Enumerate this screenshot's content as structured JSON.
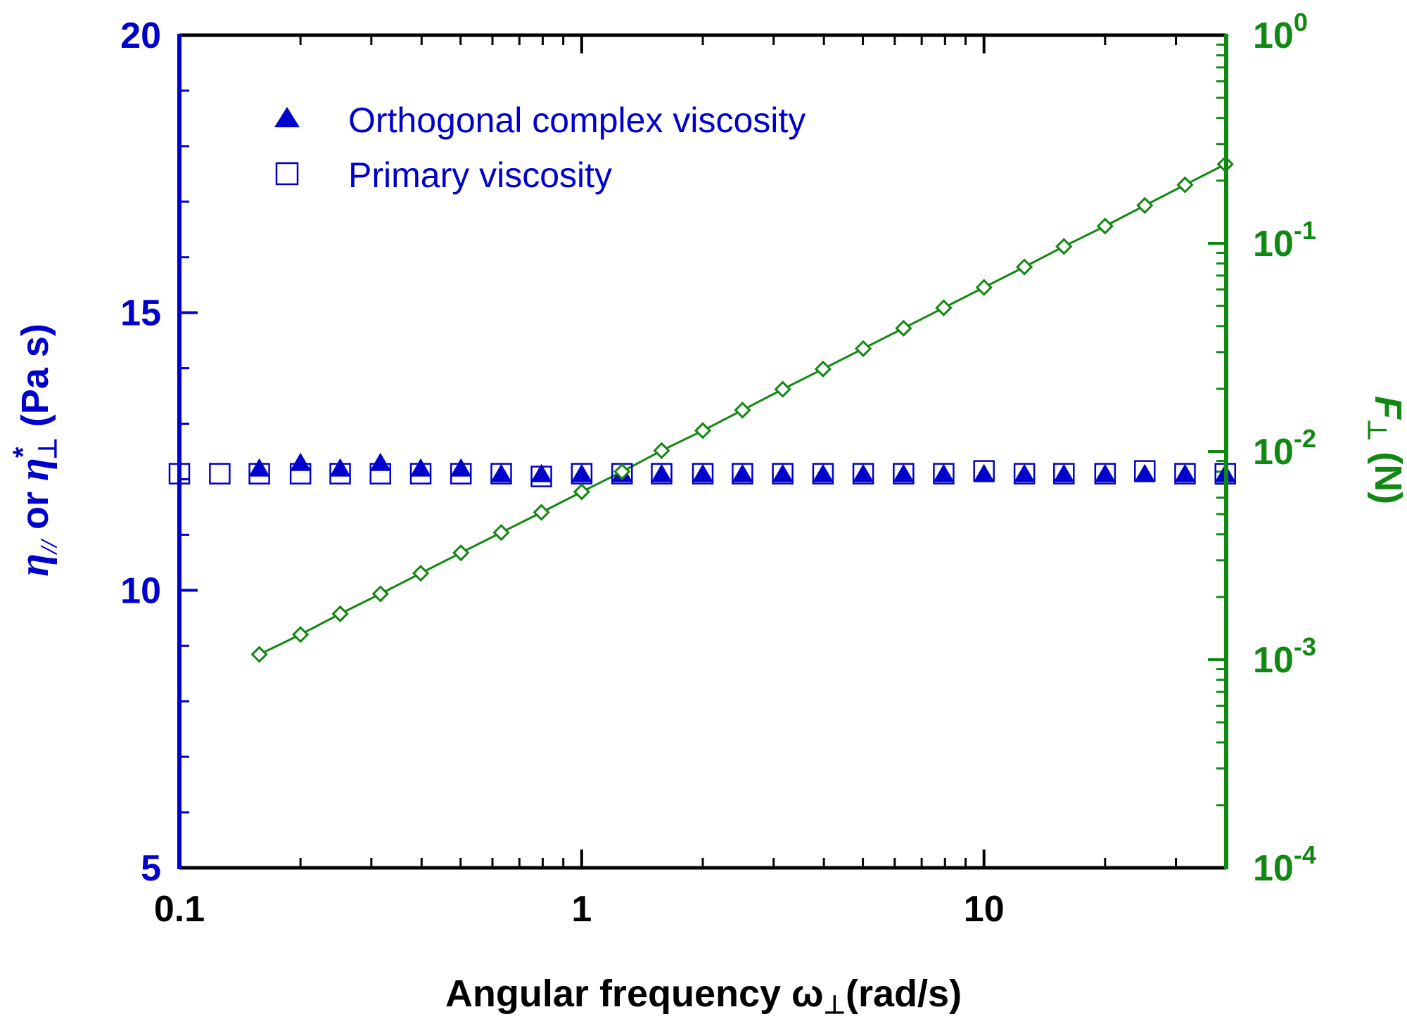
{
  "chart_data": {
    "type": "scatter",
    "title": "",
    "xlabel": "Angular frequency ω⊥(rad/s)",
    "xlabel_parts": {
      "main": "Angular frequency ω",
      "sub": "⊥",
      "unit": "(rad/s)"
    },
    "ylabel_left": "η// or η*⊥ (Pa s)",
    "ylabel_left_parts": {
      "eta1": "η",
      "sub1": "//",
      "or": " or ",
      "eta2": "η",
      "sup2": "*",
      "sub2": "⊥",
      "unit": " (Pa s)"
    },
    "ylabel_right": "F⊥ (N)",
    "ylabel_right_parts": {
      "f": "F",
      "sub": "⊥",
      "unit": " (N)"
    },
    "x_scale": "log",
    "xlim": [
      0.1,
      40
    ],
    "x_ticks": [
      0.1,
      1,
      10
    ],
    "x_tick_labels": [
      "0.1",
      "1",
      "10"
    ],
    "ylim_left": [
      5,
      20
    ],
    "y_left_ticks": [
      5,
      10,
      15,
      20
    ],
    "y_left_tick_labels": [
      "5",
      "10",
      "15",
      "20"
    ],
    "y_right_scale": "log",
    "ylim_right": [
      0.0001,
      1
    ],
    "y_right_ticks": [
      0.0001,
      0.001,
      0.01,
      0.1,
      1
    ],
    "y_right_tick_labels": [
      {
        "base": "10",
        "exp": "-4"
      },
      {
        "base": "10",
        "exp": "-3"
      },
      {
        "base": "10",
        "exp": "-2"
      },
      {
        "base": "10",
        "exp": "-1"
      },
      {
        "base": "10",
        "exp": "0"
      }
    ],
    "legend_position": "top-left",
    "colors": {
      "left_axis": "#0000cc",
      "right_axis": "#118811",
      "frame": "#000000"
    },
    "series": [
      {
        "name": "Orthogonal complex viscosity",
        "axis": "left",
        "marker": "filled-triangle",
        "color": "#0000cc",
        "x": [
          0.158,
          0.2,
          0.251,
          0.316,
          0.398,
          0.501,
          0.631,
          0.794,
          1.0,
          1.26,
          1.58,
          2.0,
          2.51,
          3.16,
          3.98,
          5.01,
          6.31,
          7.94,
          10.0,
          12.6,
          15.8,
          20.0,
          25.1,
          31.6,
          39.8
        ],
        "values": [
          12.2,
          12.3,
          12.2,
          12.3,
          12.2,
          12.2,
          12.1,
          12.1,
          12.1,
          12.1,
          12.1,
          12.1,
          12.1,
          12.1,
          12.1,
          12.1,
          12.1,
          12.1,
          12.1,
          12.1,
          12.1,
          12.1,
          12.1,
          12.1,
          12.1
        ]
      },
      {
        "name": "Primary viscosity",
        "axis": "left",
        "marker": "open-square",
        "color": "#0000cc",
        "x": [
          0.1,
          0.126,
          0.158,
          0.2,
          0.251,
          0.316,
          0.398,
          0.501,
          0.631,
          0.794,
          1.0,
          1.26,
          1.58,
          2.0,
          2.51,
          3.16,
          3.98,
          5.01,
          6.31,
          7.94,
          10.0,
          12.6,
          15.8,
          20.0,
          25.1,
          31.6,
          39.8
        ],
        "values": [
          12.1,
          12.1,
          12.1,
          12.1,
          12.1,
          12.1,
          12.1,
          12.1,
          12.1,
          12.05,
          12.1,
          12.1,
          12.1,
          12.1,
          12.1,
          12.1,
          12.1,
          12.1,
          12.1,
          12.1,
          12.15,
          12.1,
          12.1,
          12.1,
          12.15,
          12.1,
          12.1
        ]
      },
      {
        "axis": "right",
        "marker": "open-diamond-line",
        "color": "#118811",
        "x": [
          0.158,
          0.2,
          0.251,
          0.316,
          0.398,
          0.501,
          0.631,
          0.794,
          1.0,
          1.26,
          1.58,
          2.0,
          2.51,
          3.16,
          3.98,
          5.01,
          6.31,
          7.94,
          10.0,
          12.6,
          15.8,
          20.0,
          25.1,
          31.6,
          39.8
        ],
        "values": [
          0.00106,
          0.00132,
          0.00166,
          0.00207,
          0.0026,
          0.00326,
          0.00408,
          0.0051,
          0.0064,
          0.008,
          0.0101,
          0.0126,
          0.0158,
          0.0199,
          0.0249,
          0.0312,
          0.0391,
          0.049,
          0.0614,
          0.077,
          0.0966,
          0.121,
          0.152,
          0.191,
          0.24
        ]
      }
    ]
  }
}
